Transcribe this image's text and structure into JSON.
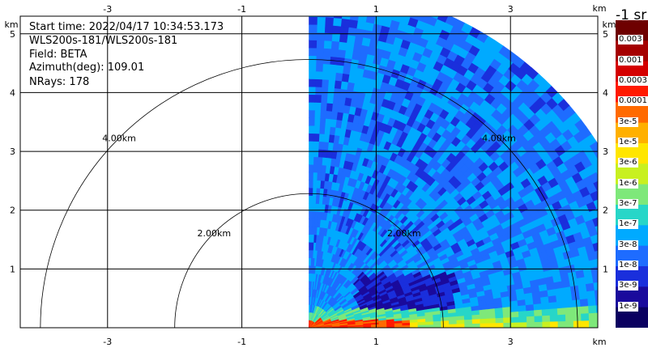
{
  "info": {
    "start_time": "Start time: 2022/04/17 10:34:53.173",
    "station": "WLS200s-181/WLS200s-181",
    "field": "Field: BETA",
    "azimuth": "Azimuth(deg): 109.01",
    "nrays": "NRays: 178"
  },
  "chart_data": {
    "type": "heatmap",
    "subtype": "rhi-scan",
    "x_ticks": [
      "-3",
      "-1",
      "1",
      "3"
    ],
    "x_tick_values": [
      -3,
      -1,
      1,
      3
    ],
    "y_ticks": [
      "1",
      "2",
      "3",
      "4",
      "5"
    ],
    "y_tick_values": [
      1,
      2,
      3,
      4,
      5
    ],
    "x_unit": "km",
    "y_unit": "km",
    "xlim": [
      -4.3,
      4.3
    ],
    "ylim": [
      0,
      5.3
    ],
    "range_ring_labels": [
      "2.00km",
      "4.00km"
    ],
    "range_ring_values_km": [
      2,
      4
    ],
    "max_range_km": 5.1,
    "grid": true,
    "colorbar": {
      "title": "-1 sr",
      "labels": [
        "0.003",
        "0.001",
        "0.0003",
        "0.0001",
        "3e-5",
        "1e-5",
        "3e-6",
        "1e-6",
        "3e-7",
        "1e-7",
        "3e-8",
        "1e-8",
        "3e-9",
        "1e-9"
      ],
      "colors": [
        "#6e0000",
        "#a50000",
        "#d40000",
        "#ff1a00",
        "#ff6a00",
        "#ffb000",
        "#ffe600",
        "#c8f020",
        "#7ee87a",
        "#27d6c8",
        "#00aaff",
        "#1e6cff",
        "#1a2fdc",
        "#1a0a9c",
        "#0a0060"
      ]
    }
  }
}
